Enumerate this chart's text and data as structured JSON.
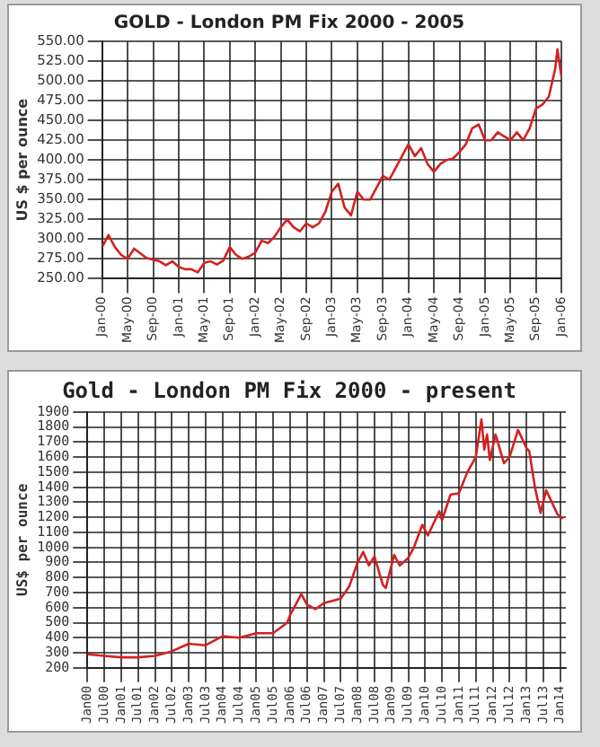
{
  "chart_data": [
    {
      "type": "line",
      "title": "GOLD - London PM Fix 2000 - 2005",
      "ylabel": "US $ per ounce",
      "grid": true,
      "legend": false,
      "marker": "none",
      "line_style": "solid",
      "xlim": [
        "2000-01",
        "2006-01"
      ],
      "xticks": [
        {
          "value": "2000-01",
          "label": "Jan-00"
        },
        {
          "value": "2000-05",
          "label": "May-00"
        },
        {
          "value": "2000-09",
          "label": "Sep-00"
        },
        {
          "value": "2001-01",
          "label": "Jan-01"
        },
        {
          "value": "2001-05",
          "label": "May-01"
        },
        {
          "value": "2001-09",
          "label": "Sep-01"
        },
        {
          "value": "2002-01",
          "label": "Jan-02"
        },
        {
          "value": "2002-05",
          "label": "May-02"
        },
        {
          "value": "2002-09",
          "label": "Sep-02"
        },
        {
          "value": "2003-01",
          "label": "Jan-03"
        },
        {
          "value": "2003-05",
          "label": "May-03"
        },
        {
          "value": "2003-09",
          "label": "Sep-03"
        },
        {
          "value": "2004-01",
          "label": "Jan-04"
        },
        {
          "value": "2004-05",
          "label": "May-04"
        },
        {
          "value": "2004-09",
          "label": "Sep-04"
        },
        {
          "value": "2005-01",
          "label": "Jan-05"
        },
        {
          "value": "2005-05",
          "label": "May-05"
        },
        {
          "value": "2005-09",
          "label": "Sep-05"
        },
        {
          "value": "2006-01",
          "label": "Jan-06"
        }
      ],
      "ylim": [
        250,
        550
      ],
      "yticks": [
        {
          "value": 250,
          "label": "250.00"
        },
        {
          "value": 275,
          "label": "275.00"
        },
        {
          "value": 300,
          "label": "300.00"
        },
        {
          "value": 325,
          "label": "325.00"
        },
        {
          "value": 350,
          "label": "350.00"
        },
        {
          "value": 375,
          "label": "375.00"
        },
        {
          "value": 400,
          "label": "400.00"
        },
        {
          "value": 425,
          "label": "425.00"
        },
        {
          "value": 450,
          "label": "450.00"
        },
        {
          "value": 475,
          "label": "475.00"
        },
        {
          "value": 500,
          "label": "500.00"
        },
        {
          "value": 525,
          "label": "525.00"
        },
        {
          "value": 550,
          "label": "550.00"
        }
      ],
      "x": [
        "2000-01",
        "2000-02",
        "2000-03",
        "2000-04",
        "2000-05",
        "2000-06",
        "2000-07",
        "2000-08",
        "2000-09",
        "2000-10",
        "2000-11",
        "2000-12",
        "2001-01",
        "2001-02",
        "2001-03",
        "2001-04",
        "2001-05",
        "2001-06",
        "2001-07",
        "2001-08",
        "2001-09",
        "2001-10",
        "2001-11",
        "2001-12",
        "2002-01",
        "2002-02",
        "2002-03",
        "2002-04",
        "2002-05",
        "2002-06",
        "2002-07",
        "2002-08",
        "2002-09",
        "2002-10",
        "2002-11",
        "2002-12",
        "2003-01",
        "2003-02",
        "2003-03",
        "2003-04",
        "2003-05",
        "2003-06",
        "2003-07",
        "2003-08",
        "2003-09",
        "2003-10",
        "2003-11",
        "2003-12",
        "2004-01",
        "2004-02",
        "2004-03",
        "2004-04",
        "2004-05",
        "2004-06",
        "2004-07",
        "2004-08",
        "2004-09",
        "2004-10",
        "2004-11",
        "2004-12",
        "2005-01",
        "2005-02",
        "2005-03",
        "2005-04",
        "2005-05",
        "2005-06",
        "2005-07",
        "2005-08",
        "2005-09",
        "2005-10",
        "2005-11",
        "2005-12",
        "2005-12-12",
        "2005-12-31"
      ],
      "series": [
        {
          "color": "#d42020",
          "values": [
            290,
            305,
            290,
            280,
            275,
            288,
            282,
            276,
            274,
            272,
            267,
            272,
            265,
            262,
            262,
            258,
            270,
            272,
            268,
            273,
            290,
            280,
            275,
            278,
            283,
            298,
            295,
            303,
            315,
            325,
            315,
            310,
            320,
            315,
            320,
            335,
            360,
            370,
            340,
            330,
            360,
            350,
            350,
            365,
            380,
            375,
            390,
            405,
            420,
            405,
            415,
            395,
            385,
            395,
            400,
            402,
            410,
            420,
            440,
            445,
            425,
            425,
            435,
            430,
            425,
            435,
            425,
            440,
            465,
            470,
            480,
            515,
            540,
            505
          ]
        }
      ]
    },
    {
      "type": "line",
      "title": "Gold - London PM Fix 2000 - present",
      "ylabel": "US$ per ounce",
      "grid": true,
      "legend": false,
      "marker": "none",
      "line_style": "solid",
      "xlim": [
        "2000-01",
        "2014-03"
      ],
      "xticks": [
        {
          "value": "2000-01",
          "label": "Jan00"
        },
        {
          "value": "2000-07",
          "label": "Jul00"
        },
        {
          "value": "2001-01",
          "label": "Jan01"
        },
        {
          "value": "2001-07",
          "label": "Jul01"
        },
        {
          "value": "2002-01",
          "label": "Jan02"
        },
        {
          "value": "2002-07",
          "label": "Jul02"
        },
        {
          "value": "2003-01",
          "label": "Jan03"
        },
        {
          "value": "2003-07",
          "label": "Jul03"
        },
        {
          "value": "2004-01",
          "label": "Jan04"
        },
        {
          "value": "2004-07",
          "label": "Jul04"
        },
        {
          "value": "2005-01",
          "label": "Jan05"
        },
        {
          "value": "2005-07",
          "label": "Jul05"
        },
        {
          "value": "2006-01",
          "label": "Jan06"
        },
        {
          "value": "2006-07",
          "label": "Jul06"
        },
        {
          "value": "2007-01",
          "label": "Jan07"
        },
        {
          "value": "2007-07",
          "label": "Jul07"
        },
        {
          "value": "2008-01",
          "label": "Jan08"
        },
        {
          "value": "2008-07",
          "label": "Jul08"
        },
        {
          "value": "2009-01",
          "label": "Jan09"
        },
        {
          "value": "2009-07",
          "label": "Jul09"
        },
        {
          "value": "2010-01",
          "label": "Jan10"
        },
        {
          "value": "2010-07",
          "label": "Jul10"
        },
        {
          "value": "2011-01",
          "label": "Jan11"
        },
        {
          "value": "2011-07",
          "label": "Jul11"
        },
        {
          "value": "2012-01",
          "label": "Jan12"
        },
        {
          "value": "2012-07",
          "label": "Jul12"
        },
        {
          "value": "2013-01",
          "label": "Jan13"
        },
        {
          "value": "2013-07",
          "label": "Jul13"
        },
        {
          "value": "2014-01",
          "label": "Jan14"
        }
      ],
      "ylim": [
        200,
        1900
      ],
      "yticks": [
        200,
        300,
        400,
        500,
        600,
        700,
        800,
        900,
        1000,
        1100,
        1200,
        1300,
        1400,
        1500,
        1600,
        1700,
        1800,
        1900
      ],
      "x": [
        "2000-01",
        "2000-07",
        "2001-01",
        "2001-07",
        "2002-01",
        "2002-07",
        "2003-01",
        "2003-07",
        "2004-01",
        "2004-07",
        "2005-01",
        "2005-07",
        "2005-12",
        "2006-01",
        "2006-05",
        "2006-07",
        "2006-10",
        "2007-01",
        "2007-07",
        "2007-10",
        "2008-01",
        "2008-03",
        "2008-05",
        "2008-07",
        "2008-10",
        "2008-11",
        "2009-02",
        "2009-04",
        "2009-07",
        "2009-09",
        "2009-12",
        "2010-02",
        "2010-06",
        "2010-07",
        "2010-10",
        "2011-01",
        "2011-04",
        "2011-07",
        "2011-09",
        "2011-10",
        "2011-11",
        "2011-12",
        "2012-02",
        "2012-05",
        "2012-07",
        "2012-10",
        "2013-01",
        "2013-02",
        "2013-04",
        "2013-06",
        "2013-08",
        "2013-10",
        "2013-12",
        "2014-02"
      ],
      "series": [
        {
          "color": "#d42020",
          "values": [
            290,
            280,
            270,
            270,
            280,
            310,
            360,
            350,
            410,
            400,
            430,
            430,
            500,
            550,
            690,
            620,
            590,
            630,
            660,
            740,
            900,
            970,
            880,
            940,
            750,
            730,
            950,
            880,
            930,
            1000,
            1150,
            1080,
            1240,
            1180,
            1350,
            1360,
            1500,
            1600,
            1850,
            1650,
            1750,
            1580,
            1750,
            1560,
            1600,
            1780,
            1660,
            1640,
            1400,
            1230,
            1380,
            1300,
            1220,
            1190
          ]
        }
      ]
    }
  ]
}
